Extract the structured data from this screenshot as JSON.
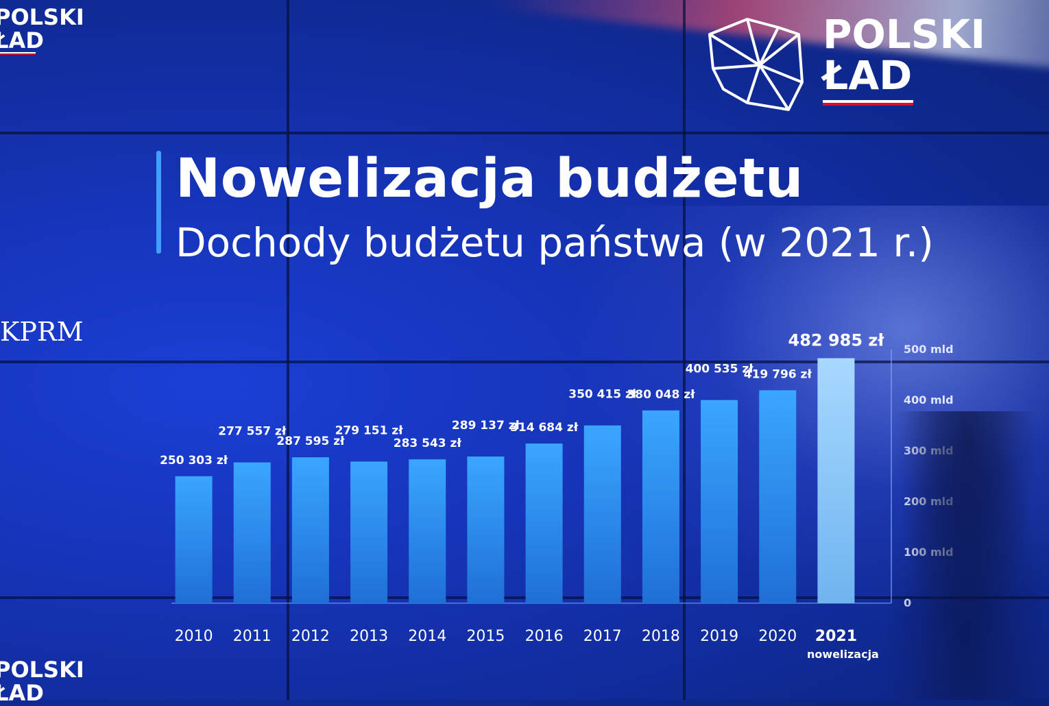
{
  "branding": {
    "logo_line1": "POLSKI",
    "logo_line2": "ŁAD",
    "kprm": "KPRM",
    "logo_icon": "poland-map-outline-icon",
    "flag_colors": [
      "#ffffff",
      "#d8102c"
    ]
  },
  "chart_data": {
    "type": "bar",
    "title": "Nowelizacja budżetu",
    "subtitle": "Dochody budżetu państwa (w 2021 r.)",
    "categories": [
      "2010",
      "2011",
      "2012",
      "2013",
      "2014",
      "2015",
      "2016",
      "2017",
      "2018",
      "2019",
      "2020",
      "2021"
    ],
    "category_sublabels": [
      "",
      "",
      "",
      "",
      "",
      "",
      "",
      "",
      "",
      "",
      "",
      "nowelizacja"
    ],
    "values": [
      250303,
      277557,
      287595,
      279151,
      283543,
      289137,
      314684,
      350415,
      380048,
      400535,
      419796,
      482985
    ],
    "value_labels": [
      "250 303 zł",
      "277 557 zł",
      "287 595 zł",
      "279 151 zł",
      "283 543 zł",
      "289 137 zł",
      "314 684 zł",
      "350 415 zł",
      "380 048 zł",
      "400 535 zł",
      "419 796 zł",
      "482 985 zł"
    ],
    "highlight_index": 11,
    "y_ticks": [
      {
        "value": 0,
        "label": "0"
      },
      {
        "value": 100000,
        "label": "100 mld"
      },
      {
        "value": 200000,
        "label": "200 mld"
      },
      {
        "value": 300000,
        "label": "300 mld"
      },
      {
        "value": 400000,
        "label": "400 mld"
      },
      {
        "value": 500000,
        "label": "500 mld"
      }
    ],
    "ylim": [
      0,
      500000
    ],
    "grid": false,
    "colors": {
      "bar": "#2a8fe6",
      "bar_highlight": "#8ec6f3",
      "axis": "#7fa8ff",
      "label": "#ffffff"
    }
  }
}
